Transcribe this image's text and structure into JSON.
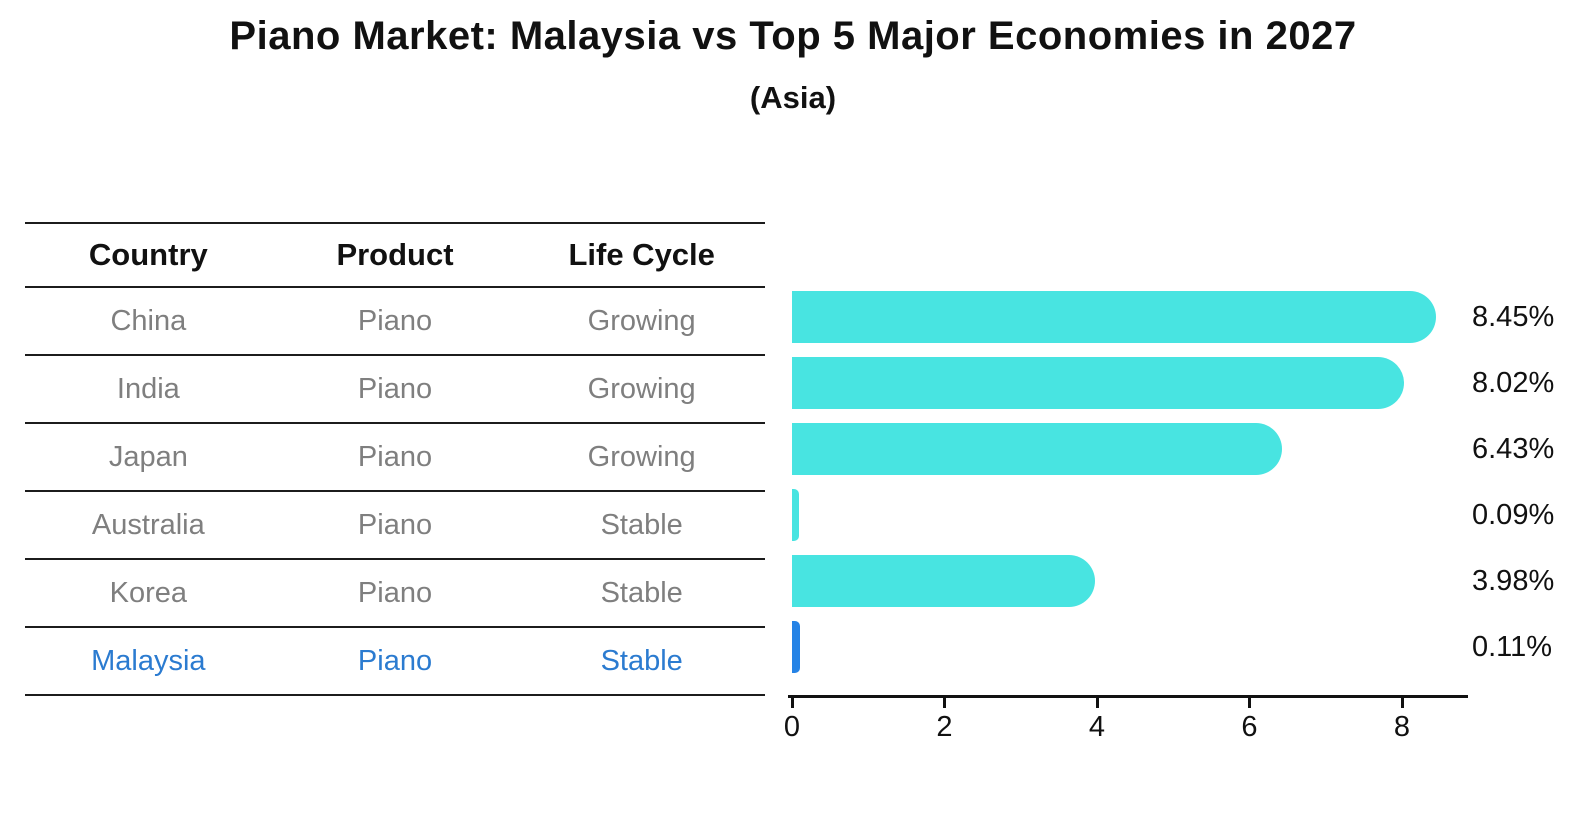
{
  "title": "Piano Market: Malaysia vs Top 5 Major Economies in 2027",
  "subtitle": "(Asia)",
  "table": {
    "headers": [
      "Country",
      "Product",
      "Life Cycle"
    ],
    "rows": [
      {
        "country": "China",
        "product": "Piano",
        "life_cycle": "Growing"
      },
      {
        "country": "India",
        "product": "Piano",
        "life_cycle": "Growing"
      },
      {
        "country": "Japan",
        "product": "Piano",
        "life_cycle": "Growing"
      },
      {
        "country": "Australia",
        "product": "Piano",
        "life_cycle": "Stable"
      },
      {
        "country": "Korea",
        "product": "Piano",
        "life_cycle": "Stable"
      },
      {
        "country": "Malaysia",
        "product": "Piano",
        "life_cycle": "Stable"
      }
    ],
    "highlight_row": "Malaysia"
  },
  "chart_data": {
    "type": "bar",
    "orientation": "horizontal",
    "title": "Piano Market: Malaysia vs Top 5 Major Economies in 2027",
    "subtitle": "(Asia)",
    "categories": [
      "China",
      "India",
      "Japan",
      "Australia",
      "Korea",
      "Malaysia"
    ],
    "values": [
      8.45,
      8.02,
      6.43,
      0.09,
      3.98,
      0.11
    ],
    "value_labels": [
      "8.45%",
      "8.02%",
      "6.43%",
      "0.09%",
      "3.98%",
      "0.11%"
    ],
    "x_ticks": [
      "0",
      "2",
      "4",
      "6",
      "8"
    ],
    "xlim": [
      0,
      8.9
    ],
    "grid": false,
    "legend": "none",
    "bar_color": "#48E4E1",
    "highlight_bar_color": "#2583E6",
    "highlight_index": 5
  },
  "colors": {
    "background": "#FFFFFF",
    "text_primary": "#111111",
    "table_text": "#7F7F7F",
    "highlight_text": "#2B7BD0",
    "rule_line": "#1C1C1C"
  }
}
